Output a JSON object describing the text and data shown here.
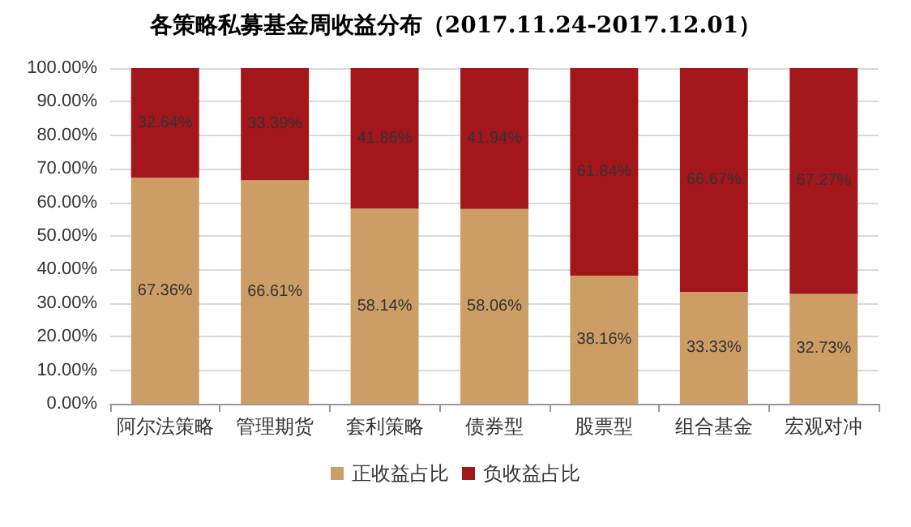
{
  "chart_data": {
    "type": "bar",
    "title": "各策略私募基金周收益分布（2017.11.24-2017.12.01）",
    "stacked": true,
    "categories": [
      "阿尔法策略",
      "管理期货",
      "套利策略",
      "债券型",
      "股票型",
      "组合基金",
      "宏观对冲"
    ],
    "series": [
      {
        "name": "正收益占比",
        "color": "#cc9e66",
        "values": [
          67.36,
          66.61,
          58.14,
          58.06,
          38.16,
          33.33,
          32.73
        ],
        "value_labels": [
          "67.36%",
          "66.61%",
          "58.14%",
          "58.06%",
          "38.16%",
          "33.33%",
          "32.73%"
        ]
      },
      {
        "name": "负收益占比",
        "color": "#a3171c",
        "values": [
          32.64,
          33.39,
          41.86,
          41.94,
          61.84,
          66.67,
          67.27
        ],
        "value_labels": [
          "32.64%",
          "33.39%",
          "41.86%",
          "41.94%",
          "61.84%",
          "66.67%",
          "67.27%"
        ]
      }
    ],
    "ylim": [
      0,
      100
    ],
    "yticks": [
      {
        "value": 0,
        "label": "0.00%"
      },
      {
        "value": 10,
        "label": "10.00%"
      },
      {
        "value": 20,
        "label": "20.00%"
      },
      {
        "value": 30,
        "label": "30.00%"
      },
      {
        "value": 40,
        "label": "40.00%"
      },
      {
        "value": 50,
        "label": "50.00%"
      },
      {
        "value": 60,
        "label": "60.00%"
      },
      {
        "value": 70,
        "label": "70.00%"
      },
      {
        "value": 80,
        "label": "80.00%"
      },
      {
        "value": 90,
        "label": "90.00%"
      },
      {
        "value": 100,
        "label": "100.00%"
      }
    ],
    "grid": "y",
    "legend": "bottom"
  }
}
